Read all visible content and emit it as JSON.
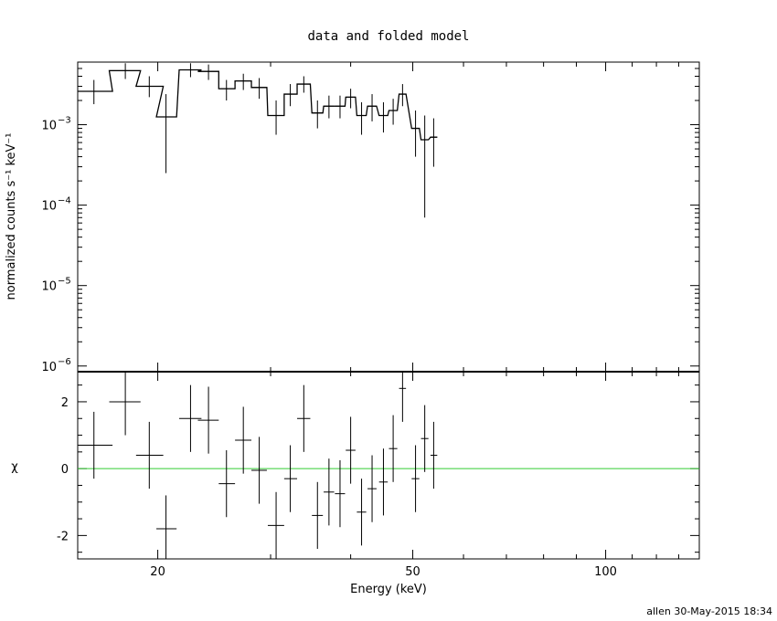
{
  "chart_data": [
    {
      "type": "scatter",
      "title": "data and folded model",
      "ylabel": "normalized counts s⁻¹ keV⁻¹",
      "y_scale": "log",
      "ylim": [
        8.5e-07,
        0.006
      ],
      "xlim": [
        15,
        140
      ],
      "x_scale": "log",
      "y_ticks": [
        {
          "value": 0.001,
          "base": "10",
          "exp": "−3"
        },
        {
          "value": 0.0001,
          "base": "10",
          "exp": "−4"
        },
        {
          "value": 1e-05,
          "base": "10",
          "exp": "−5"
        },
        {
          "value": 1e-06,
          "base": "10",
          "exp": "−6"
        }
      ],
      "series": [
        {
          "role": "data",
          "points": [
            {
              "x": 15.9,
              "y": 0.0026,
              "xlo": 15.0,
              "xhi": 17.0,
              "ylo": 0.0018,
              "yhi": 0.0036
            },
            {
              "x": 17.8,
              "y": 0.0047,
              "xlo": 16.8,
              "xhi": 18.8,
              "ylo": 0.0037,
              "yhi": 0.0058
            },
            {
              "x": 19.4,
              "y": 0.003,
              "xlo": 18.5,
              "xhi": 20.4,
              "ylo": 0.0022,
              "yhi": 0.004
            },
            {
              "x": 20.6,
              "y": 0.00125,
              "xlo": 19.9,
              "xhi": 21.4,
              "ylo": 0.00025,
              "yhi": 0.0024
            },
            {
              "x": 22.5,
              "y": 0.0048,
              "xlo": 21.6,
              "xhi": 23.4,
              "ylo": 0.0039,
              "yhi": 0.0058
            },
            {
              "x": 24.0,
              "y": 0.0046,
              "xlo": 23.1,
              "xhi": 24.9,
              "ylo": 0.0036,
              "yhi": 0.0056
            },
            {
              "x": 25.6,
              "y": 0.0028,
              "xlo": 24.9,
              "xhi": 26.4,
              "ylo": 0.002,
              "yhi": 0.0036
            },
            {
              "x": 27.2,
              "y": 0.0035,
              "xlo": 26.4,
              "xhi": 28.0,
              "ylo": 0.0027,
              "yhi": 0.0043
            },
            {
              "x": 28.8,
              "y": 0.0029,
              "xlo": 28.0,
              "xhi": 29.6,
              "ylo": 0.0021,
              "yhi": 0.0038
            },
            {
              "x": 30.6,
              "y": 0.0013,
              "xlo": 29.7,
              "xhi": 31.5,
              "ylo": 0.00075,
              "yhi": 0.002
            },
            {
              "x": 32.2,
              "y": 0.0024,
              "xlo": 31.5,
              "xhi": 33.0,
              "ylo": 0.0017,
              "yhi": 0.0032
            },
            {
              "x": 33.8,
              "y": 0.0032,
              "xlo": 33.0,
              "xhi": 34.6,
              "ylo": 0.0025,
              "yhi": 0.004
            },
            {
              "x": 35.5,
              "y": 0.0014,
              "xlo": 34.8,
              "xhi": 36.2,
              "ylo": 0.0009,
              "yhi": 0.002
            },
            {
              "x": 37.0,
              "y": 0.0017,
              "xlo": 36.3,
              "xhi": 37.7,
              "ylo": 0.0012,
              "yhi": 0.0023
            },
            {
              "x": 38.5,
              "y": 0.0017,
              "xlo": 37.8,
              "xhi": 39.2,
              "ylo": 0.0012,
              "yhi": 0.0023
            },
            {
              "x": 40.0,
              "y": 0.0022,
              "xlo": 39.3,
              "xhi": 40.7,
              "ylo": 0.0016,
              "yhi": 0.0028
            },
            {
              "x": 41.6,
              "y": 0.0013,
              "xlo": 40.9,
              "xhi": 42.3,
              "ylo": 0.00075,
              "yhi": 0.0019
            },
            {
              "x": 43.2,
              "y": 0.0017,
              "xlo": 42.5,
              "xhi": 43.9,
              "ylo": 0.0011,
              "yhi": 0.0024
            },
            {
              "x": 45.0,
              "y": 0.0013,
              "xlo": 44.3,
              "xhi": 45.7,
              "ylo": 0.0008,
              "yhi": 0.0019
            },
            {
              "x": 46.6,
              "y": 0.0015,
              "xlo": 45.9,
              "xhi": 47.3,
              "ylo": 0.001,
              "yhi": 0.0021
            },
            {
              "x": 48.2,
              "y": 0.0024,
              "xlo": 47.6,
              "xhi": 48.8,
              "ylo": 0.0017,
              "yhi": 0.0032
            },
            {
              "x": 50.5,
              "y": 0.0009,
              "xlo": 49.8,
              "xhi": 51.2,
              "ylo": 0.0004,
              "yhi": 0.0015
            },
            {
              "x": 52.2,
              "y": 0.00065,
              "xlo": 51.5,
              "xhi": 52.9,
              "ylo": 7e-05,
              "yhi": 0.0013
            },
            {
              "x": 53.9,
              "y": 0.0007,
              "xlo": 53.3,
              "xhi": 54.6,
              "ylo": 0.0003,
              "yhi": 0.0012
            }
          ]
        },
        {
          "role": "model",
          "style": "step"
        }
      ]
    },
    {
      "type": "scatter",
      "ylabel": "χ",
      "xlabel": "Energy (keV)",
      "ylim": [
        -2.7,
        2.9
      ],
      "xlim": [
        15,
        140
      ],
      "x_scale": "log",
      "y_ticks": [
        2,
        0,
        -2
      ],
      "x_ticks": [
        20,
        50,
        100
      ],
      "zero_line_color": "#33cc33",
      "points": [
        {
          "x": 15.9,
          "y": 0.7,
          "xlo": 15.0,
          "xhi": 17.0,
          "ylo": -0.3,
          "yhi": 1.7
        },
        {
          "x": 17.8,
          "y": 2.0,
          "xlo": 16.8,
          "xhi": 18.8,
          "ylo": 1.0,
          "yhi": 3.0
        },
        {
          "x": 19.4,
          "y": 0.4,
          "xlo": 18.5,
          "xhi": 20.4,
          "ylo": -0.6,
          "yhi": 1.4
        },
        {
          "x": 20.6,
          "y": -1.8,
          "xlo": 19.9,
          "xhi": 21.4,
          "ylo": -2.8,
          "yhi": -0.8
        },
        {
          "x": 22.5,
          "y": 1.5,
          "xlo": 21.6,
          "xhi": 23.4,
          "ylo": 0.5,
          "yhi": 2.5
        },
        {
          "x": 24.0,
          "y": 1.45,
          "xlo": 23.1,
          "xhi": 24.9,
          "ylo": 0.45,
          "yhi": 2.45
        },
        {
          "x": 25.6,
          "y": -0.45,
          "xlo": 24.9,
          "xhi": 26.4,
          "ylo": -1.45,
          "yhi": 0.55
        },
        {
          "x": 27.2,
          "y": 0.85,
          "xlo": 26.4,
          "xhi": 28.0,
          "ylo": -0.15,
          "yhi": 1.85
        },
        {
          "x": 28.8,
          "y": -0.05,
          "xlo": 28.0,
          "xhi": 29.6,
          "ylo": -1.05,
          "yhi": 0.95
        },
        {
          "x": 30.6,
          "y": -1.7,
          "xlo": 29.7,
          "xhi": 31.5,
          "ylo": -2.7,
          "yhi": -0.7
        },
        {
          "x": 32.2,
          "y": -0.3,
          "xlo": 31.5,
          "xhi": 33.0,
          "ylo": -1.3,
          "yhi": 0.7
        },
        {
          "x": 33.8,
          "y": 1.5,
          "xlo": 33.0,
          "xhi": 34.6,
          "ylo": 0.5,
          "yhi": 2.5
        },
        {
          "x": 35.5,
          "y": -1.4,
          "xlo": 34.8,
          "xhi": 36.2,
          "ylo": -2.4,
          "yhi": -0.4
        },
        {
          "x": 37.0,
          "y": -0.7,
          "xlo": 36.3,
          "xhi": 37.7,
          "ylo": -1.7,
          "yhi": 0.3
        },
        {
          "x": 38.5,
          "y": -0.75,
          "xlo": 37.8,
          "xhi": 39.2,
          "ylo": -1.75,
          "yhi": 0.25
        },
        {
          "x": 40.0,
          "y": 0.55,
          "xlo": 39.3,
          "xhi": 40.7,
          "ylo": -0.45,
          "yhi": 1.55
        },
        {
          "x": 41.6,
          "y": -1.3,
          "xlo": 40.9,
          "xhi": 42.3,
          "ylo": -2.3,
          "yhi": -0.3
        },
        {
          "x": 43.2,
          "y": -0.6,
          "xlo": 42.5,
          "xhi": 43.9,
          "ylo": -1.6,
          "yhi": 0.4
        },
        {
          "x": 45.0,
          "y": -0.4,
          "xlo": 44.3,
          "xhi": 45.7,
          "ylo": -1.4,
          "yhi": 0.6
        },
        {
          "x": 46.6,
          "y": 0.6,
          "xlo": 45.9,
          "xhi": 47.3,
          "ylo": -0.4,
          "yhi": 1.6
        },
        {
          "x": 48.2,
          "y": 2.4,
          "xlo": 47.6,
          "xhi": 48.8,
          "ylo": 1.4,
          "yhi": 3.4
        },
        {
          "x": 50.5,
          "y": -0.3,
          "xlo": 49.8,
          "xhi": 51.2,
          "ylo": -1.3,
          "yhi": 0.7
        },
        {
          "x": 52.2,
          "y": 0.9,
          "xlo": 51.5,
          "xhi": 52.9,
          "ylo": -0.1,
          "yhi": 1.9
        },
        {
          "x": 53.9,
          "y": 0.4,
          "xlo": 53.3,
          "xhi": 54.6,
          "ylo": -0.6,
          "yhi": 1.4
        }
      ]
    }
  ],
  "footer": "allen 30-May-2015 18:34"
}
